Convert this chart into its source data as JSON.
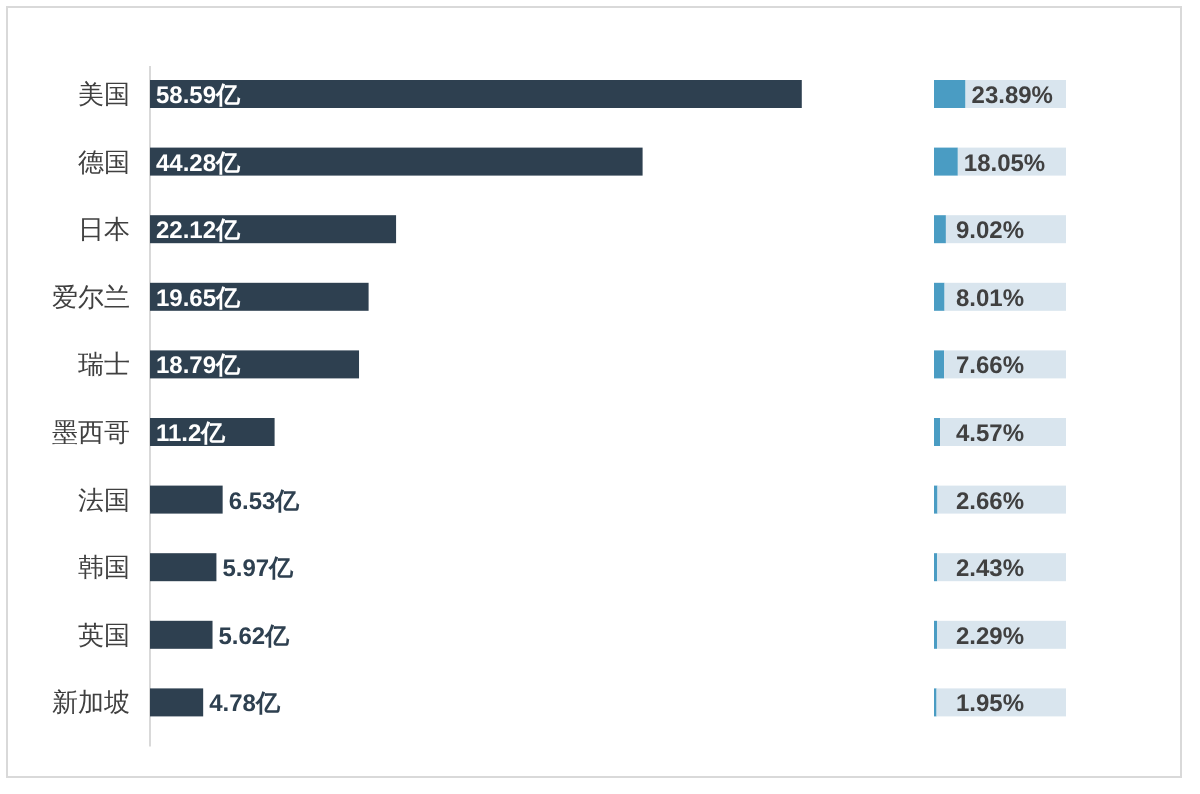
{
  "chart_data": [
    {
      "type": "bar",
      "orientation": "horizontal",
      "categories": [
        "美国",
        "德国",
        "日本",
        "爱尔兰",
        "瑞士",
        "墨西哥",
        "法国",
        "韩国",
        "英国",
        "新加坡"
      ],
      "series": [
        {
          "color": "#2e4050",
          "values": [
            58.59,
            44.28,
            22.12,
            19.65,
            18.79,
            11.2,
            6.53,
            5.97,
            5.62,
            4.78
          ],
          "value_labels": [
            "58.59亿",
            "44.28亿",
            "22.12亿",
            "19.65亿",
            "18.79亿",
            "11.2亿",
            "6.53亿",
            "5.97亿",
            "5.62亿",
            "4.78亿"
          ]
        }
      ],
      "relative": false
    },
    {
      "type": "bar",
      "orientation": "horizontal",
      "stacked": true,
      "categories": [
        null,
        null,
        null,
        null,
        null,
        null,
        null,
        null,
        null,
        null
      ],
      "xlim": [
        0,
        100
      ],
      "series": [
        {
          "color": "#4a9cc3",
          "values": [
            23.89,
            18.05,
            9.02,
            8.01,
            7.66,
            4.57,
            2.66,
            2.43,
            2.29,
            1.95
          ],
          "value_labels": [
            "23.89%",
            "18.05%",
            "9.02%",
            "8.01%",
            "7.66%",
            "4.57%",
            "2.66%",
            "2.43%",
            "2.29%",
            "1.95%"
          ]
        },
        {
          "color": "#d9e5ee",
          "values": [
            76.11,
            81.95,
            90.98,
            91.99,
            92.34,
            95.43,
            97.34,
            97.57,
            97.71,
            98.05
          ]
        }
      ]
    }
  ]
}
